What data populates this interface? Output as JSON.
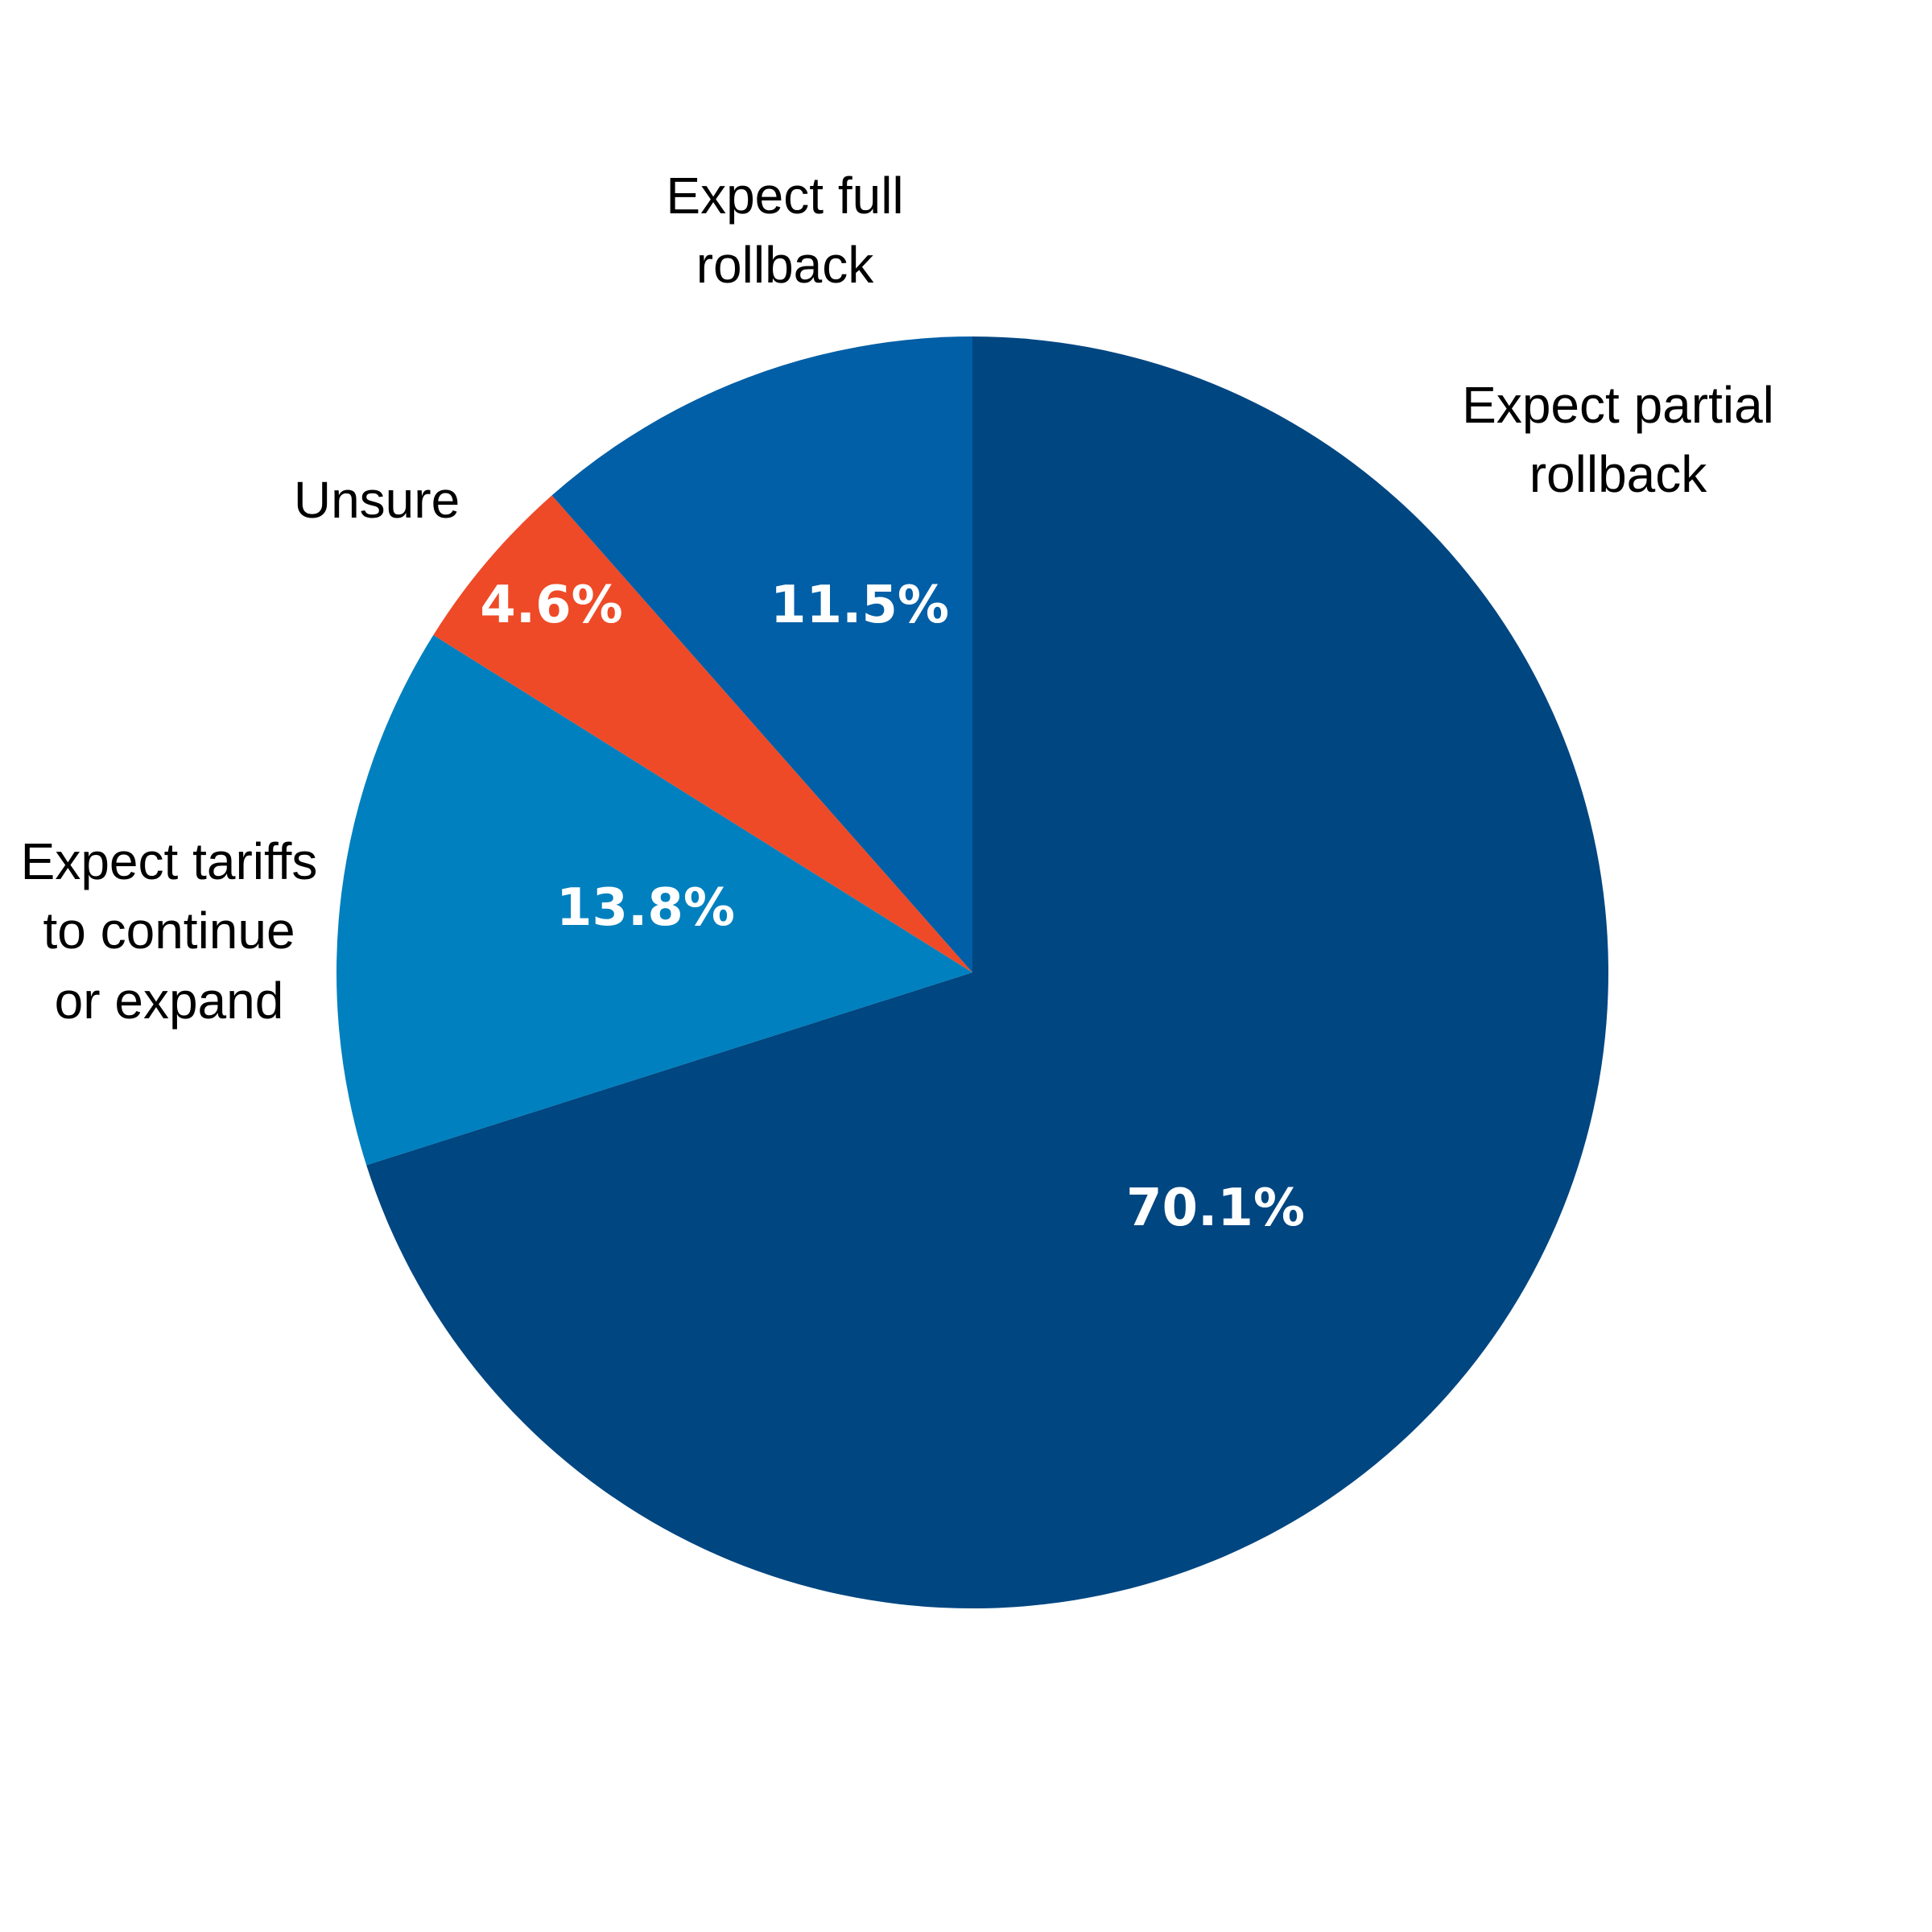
{
  "chart_data": {
    "type": "pie",
    "start": "12 o'clock",
    "direction": "clockwise",
    "slices": [
      {
        "label_lines": [
          "Expect partial",
          "rollback"
        ],
        "value": 70.1,
        "value_label": "70.1%",
        "color": "#004681"
      },
      {
        "label_lines": [
          "Expect tariffs",
          "to continue",
          "or expand"
        ],
        "value": 13.8,
        "value_label": "13.8%",
        "color": "#0080BE"
      },
      {
        "label_lines": [
          "Unsure"
        ],
        "value": 4.6,
        "value_label": "4.6%",
        "color": "#EE4A27"
      },
      {
        "label_lines": [
          "Expect full",
          "rollback"
        ],
        "value": 11.5,
        "value_label": "11.5%",
        "color": "#005FA6"
      }
    ]
  }
}
